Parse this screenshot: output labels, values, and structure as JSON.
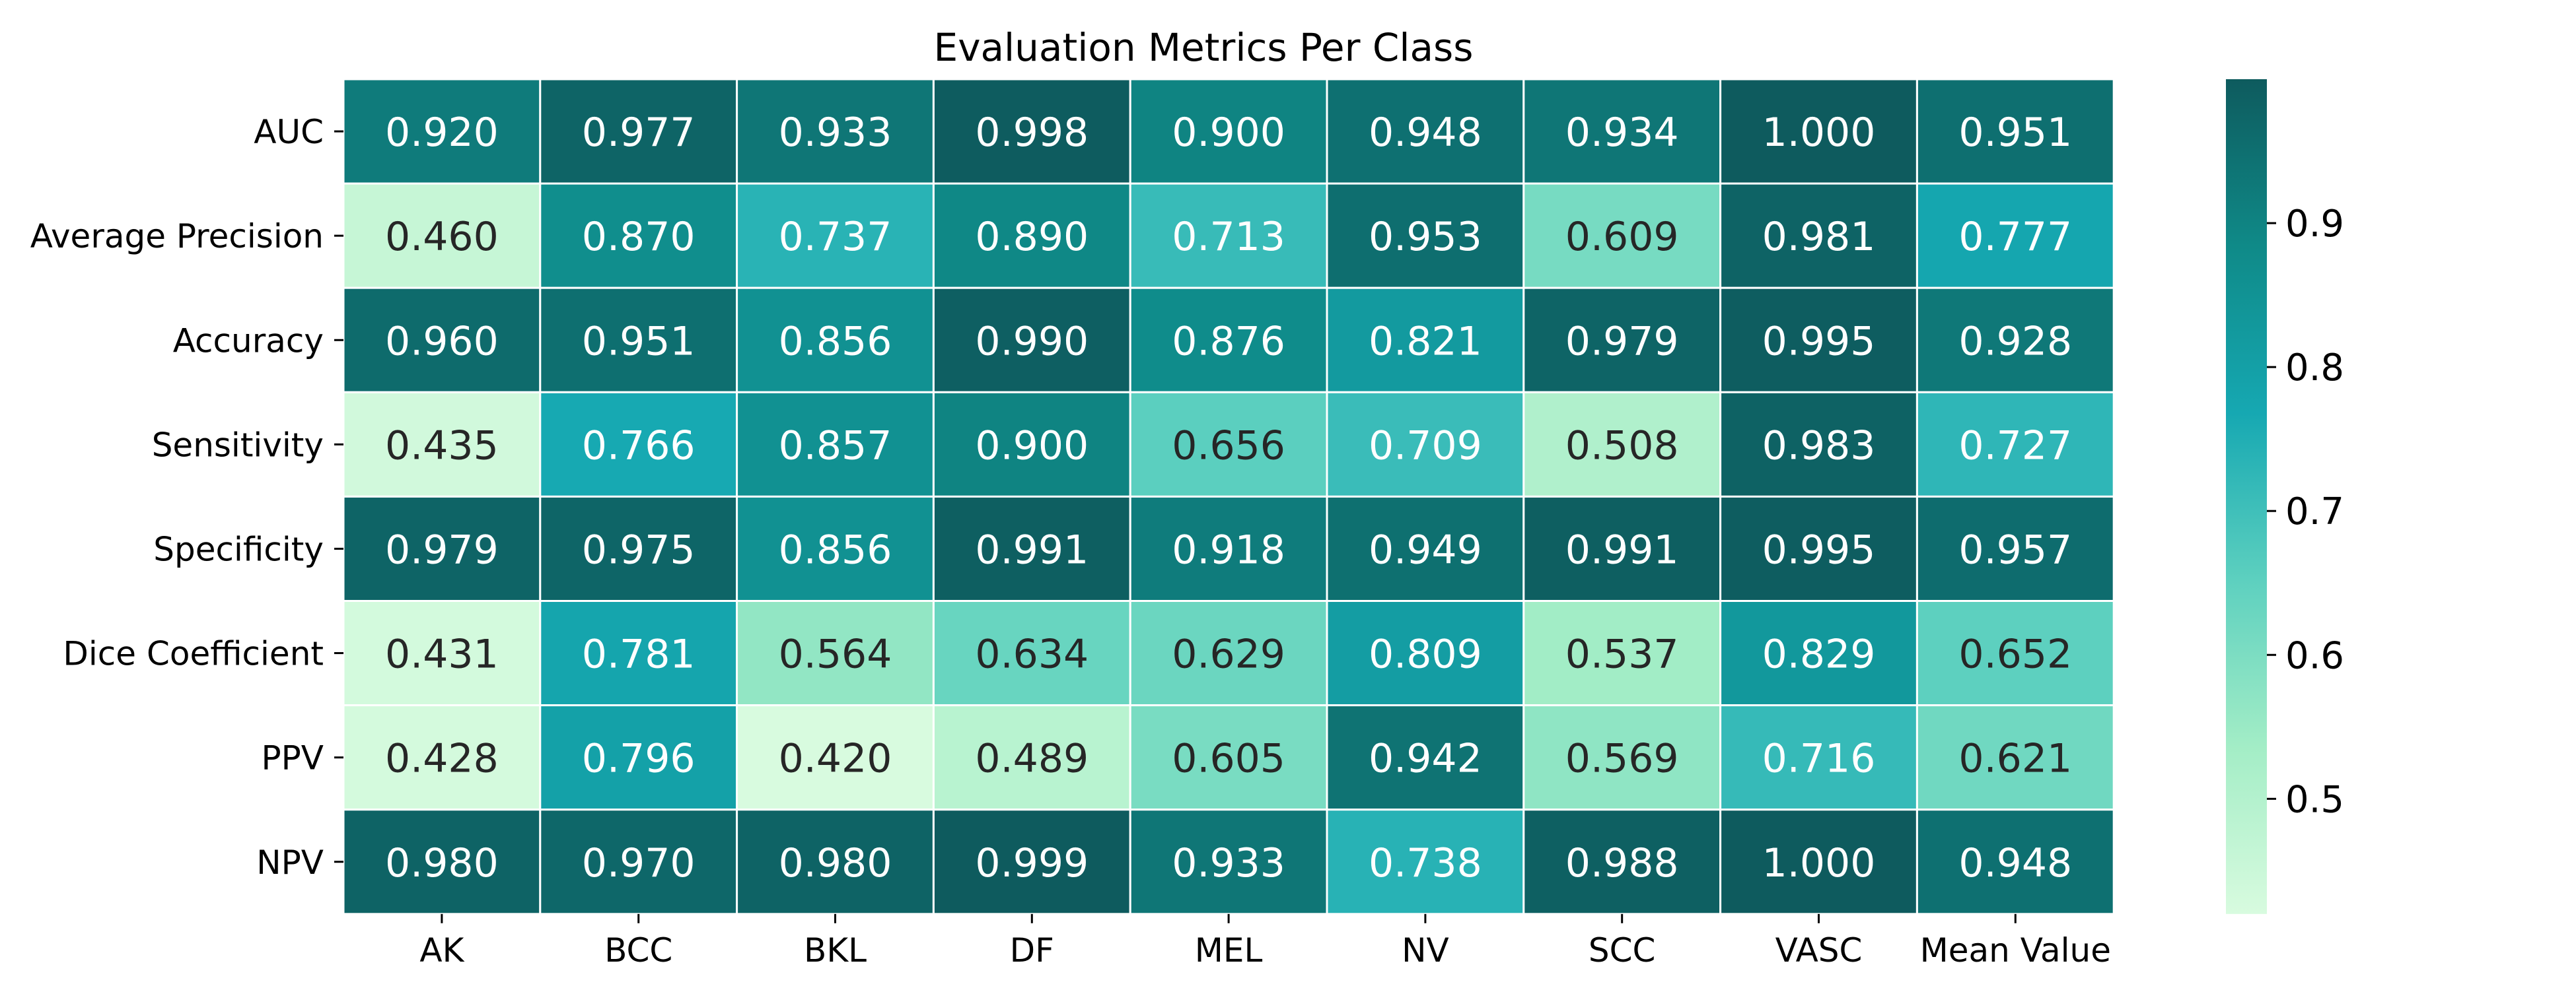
{
  "chart_data": {
    "type": "heatmap",
    "title": "Evaluation Metrics Per Class",
    "columns": [
      "AK",
      "BCC",
      "BKL",
      "DF",
      "MEL",
      "NV",
      "SCC",
      "VASC",
      "Mean Value"
    ],
    "rows": [
      "AUC",
      "Average Precision",
      "Accuracy",
      "Sensitivity",
      "Specificity",
      "Dice Coefficient",
      "PPV",
      "NPV"
    ],
    "values": [
      [
        0.92,
        0.977,
        0.933,
        0.998,
        0.9,
        0.948,
        0.934,
        1.0,
        0.951
      ],
      [
        0.46,
        0.87,
        0.737,
        0.89,
        0.713,
        0.953,
        0.609,
        0.981,
        0.777
      ],
      [
        0.96,
        0.951,
        0.856,
        0.99,
        0.876,
        0.821,
        0.979,
        0.995,
        0.928
      ],
      [
        0.435,
        0.766,
        0.857,
        0.9,
        0.656,
        0.709,
        0.508,
        0.983,
        0.727
      ],
      [
        0.979,
        0.975,
        0.856,
        0.991,
        0.918,
        0.949,
        0.991,
        0.995,
        0.957
      ],
      [
        0.431,
        0.781,
        0.564,
        0.634,
        0.629,
        0.809,
        0.537,
        0.829,
        0.652
      ],
      [
        0.428,
        0.796,
        0.42,
        0.489,
        0.605,
        0.942,
        0.569,
        0.716,
        0.621
      ],
      [
        0.98,
        0.97,
        0.98,
        0.999,
        0.933,
        0.738,
        0.988,
        1.0,
        0.948
      ]
    ],
    "cell_labels": [
      [
        "0.920",
        "0.977",
        "0.933",
        "0.998",
        "0.900",
        "0.948",
        "0.934",
        "1.000",
        "0.951"
      ],
      [
        "0.460",
        "0.870",
        "0.737",
        "0.890",
        "0.713",
        "0.953",
        "0.609",
        "0.981",
        "0.777"
      ],
      [
        "0.960",
        "0.951",
        "0.856",
        "0.990",
        "0.876",
        "0.821",
        "0.979",
        "0.995",
        "0.928"
      ],
      [
        "0.435",
        "0.766",
        "0.857",
        "0.900",
        "0.656",
        "0.709",
        "0.508",
        "0.983",
        "0.727"
      ],
      [
        "0.979",
        "0.975",
        "0.856",
        "0.991",
        "0.918",
        "0.949",
        "0.991",
        "0.995",
        "0.957"
      ],
      [
        "0.431",
        "0.781",
        "0.564",
        "0.634",
        "0.629",
        "0.809",
        "0.537",
        "0.829",
        "0.652"
      ],
      [
        "0.428",
        "0.796",
        "0.420",
        "0.489",
        "0.605",
        "0.942",
        "0.569",
        "0.716",
        "0.621"
      ],
      [
        "0.980",
        "0.970",
        "0.980",
        "0.999",
        "0.933",
        "0.738",
        "0.988",
        "1.000",
        "0.948"
      ]
    ],
    "color_range": [
      0.42,
      1.0
    ],
    "colorbar_ticks": [
      0.5,
      0.6,
      0.7,
      0.8,
      0.9
    ],
    "colorbar_tick_labels": [
      "0.5",
      "0.6",
      "0.7",
      "0.8",
      "0.9"
    ],
    "colormap": [
      "#d8fbdf",
      "#a3edc6",
      "#5dd0bf",
      "#16a8b2",
      "#0f8a88",
      "#0e5b5e"
    ],
    "light_text_color": "#ffffff",
    "dark_text_color": "#262626",
    "grid": false,
    "legend": "colorbar-right"
  }
}
